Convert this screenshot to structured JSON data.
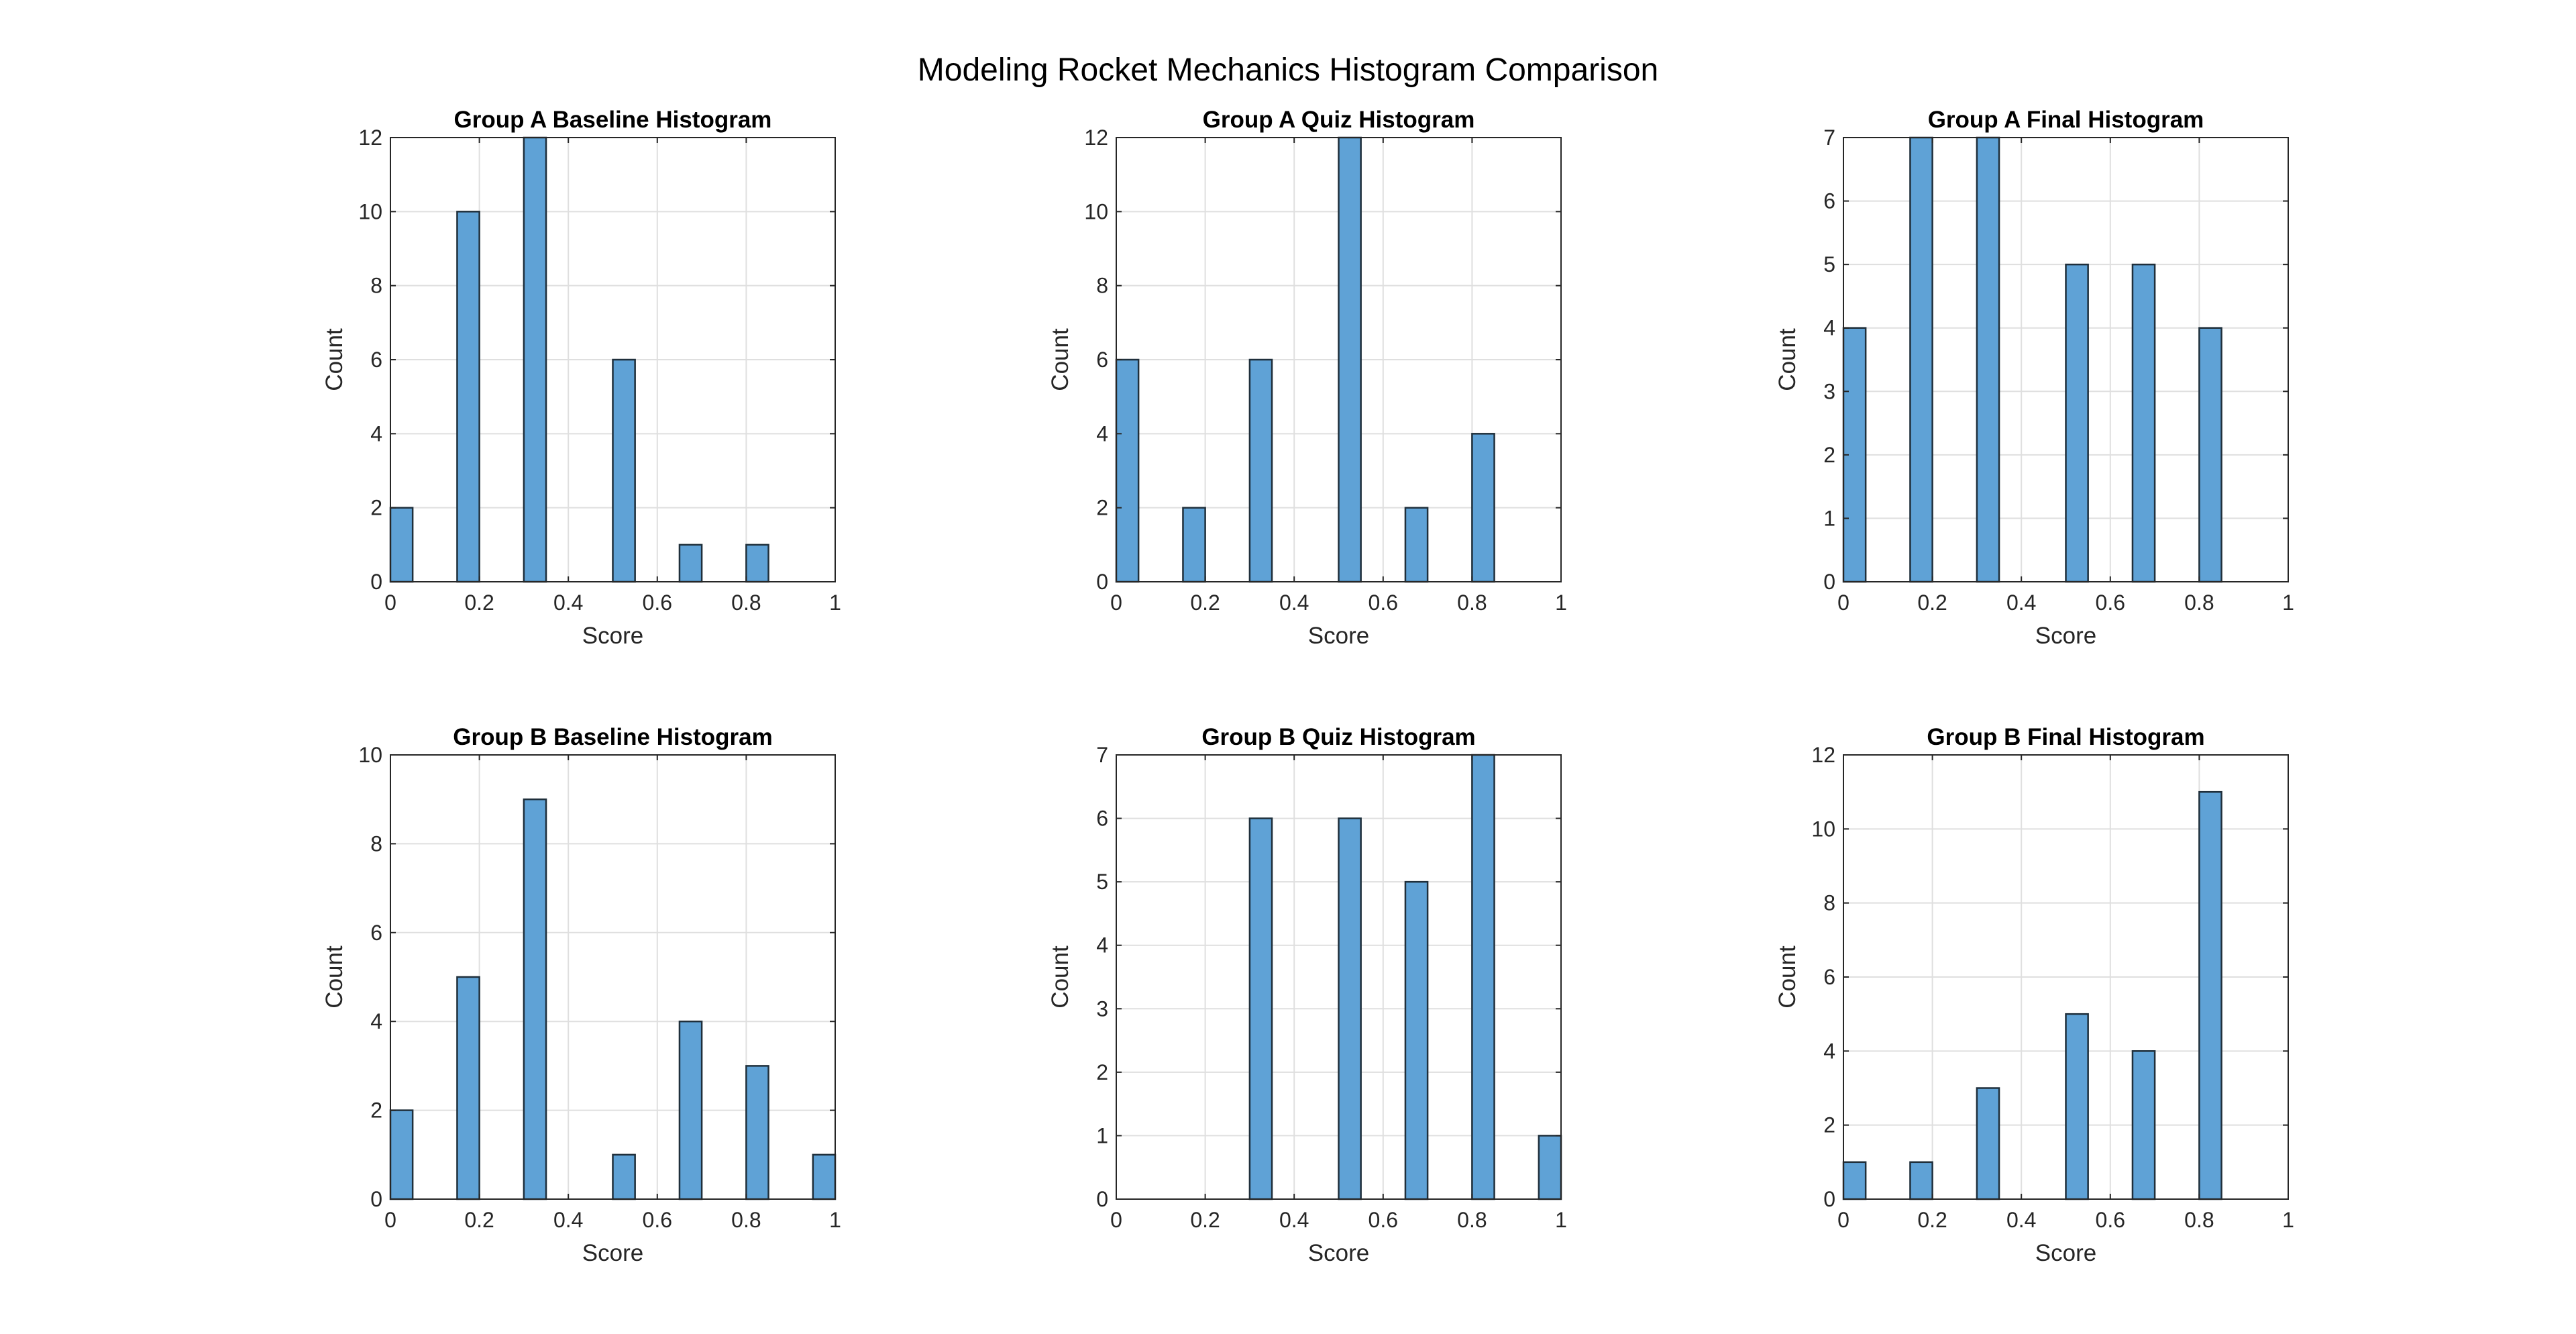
{
  "figure_title": "Modeling Rocket Mechanics Histogram Comparison",
  "chart_data": [
    {
      "type": "bar",
      "title": "Group A Baseline Histogram",
      "xlabel": "Score",
      "ylabel": "Count",
      "xlim": [
        0,
        1
      ],
      "ylim": [
        0,
        12
      ],
      "xticks": [
        0,
        0.2,
        0.4,
        0.6,
        0.8,
        1
      ],
      "yticks": [
        0,
        2,
        4,
        6,
        8,
        10,
        12
      ],
      "grid": true,
      "bin_width": 0.05,
      "bin_starts": [
        0,
        0.15,
        0.3,
        0.5,
        0.65,
        0.8
      ],
      "values": [
        2,
        10,
        12,
        6,
        1,
        1
      ]
    },
    {
      "type": "bar",
      "title": "Group A Quiz Histogram",
      "xlabel": "Score",
      "ylabel": "Count",
      "xlim": [
        0,
        1
      ],
      "ylim": [
        0,
        12
      ],
      "xticks": [
        0,
        0.2,
        0.4,
        0.6,
        0.8,
        1
      ],
      "yticks": [
        0,
        2,
        4,
        6,
        8,
        10,
        12
      ],
      "grid": true,
      "bin_width": 0.05,
      "bin_starts": [
        0,
        0.15,
        0.3,
        0.5,
        0.65,
        0.8
      ],
      "values": [
        6,
        2,
        6,
        12,
        2,
        4
      ]
    },
    {
      "type": "bar",
      "title": "Group A Final Histogram",
      "xlabel": "Score",
      "ylabel": "Count",
      "xlim": [
        0,
        1
      ],
      "ylim": [
        0,
        7
      ],
      "xticks": [
        0,
        0.2,
        0.4,
        0.6,
        0.8,
        1
      ],
      "yticks": [
        0,
        1,
        2,
        3,
        4,
        5,
        6,
        7
      ],
      "grid": true,
      "bin_width": 0.05,
      "bin_starts": [
        0,
        0.15,
        0.3,
        0.5,
        0.65,
        0.8
      ],
      "values": [
        4,
        7,
        7,
        5,
        5,
        4
      ]
    },
    {
      "type": "bar",
      "title": "Group B Baseline Histogram",
      "xlabel": "Score",
      "ylabel": "Count",
      "xlim": [
        0,
        1
      ],
      "ylim": [
        0,
        10
      ],
      "xticks": [
        0,
        0.2,
        0.4,
        0.6,
        0.8,
        1
      ],
      "yticks": [
        0,
        2,
        4,
        6,
        8,
        10
      ],
      "grid": true,
      "bin_width": 0.05,
      "bin_starts": [
        0,
        0.15,
        0.3,
        0.5,
        0.65,
        0.8,
        0.95
      ],
      "values": [
        2,
        5,
        9,
        1,
        4,
        3,
        1
      ]
    },
    {
      "type": "bar",
      "title": "Group B Quiz Histogram",
      "xlabel": "Score",
      "ylabel": "Count",
      "xlim": [
        0,
        1
      ],
      "ylim": [
        0,
        7
      ],
      "xticks": [
        0,
        0.2,
        0.4,
        0.6,
        0.8,
        1
      ],
      "yticks": [
        0,
        1,
        2,
        3,
        4,
        5,
        6,
        7
      ],
      "grid": true,
      "bin_width": 0.05,
      "bin_starts": [
        0.3,
        0.5,
        0.65,
        0.8,
        0.95
      ],
      "values": [
        6,
        6,
        5,
        7,
        1
      ]
    },
    {
      "type": "bar",
      "title": "Group B Final Histogram",
      "xlabel": "Score",
      "ylabel": "Count",
      "xlim": [
        0,
        1
      ],
      "ylim": [
        0,
        12
      ],
      "xticks": [
        0,
        0.2,
        0.4,
        0.6,
        0.8,
        1
      ],
      "yticks": [
        0,
        2,
        4,
        6,
        8,
        10,
        12
      ],
      "grid": true,
      "bin_width": 0.05,
      "bin_starts": [
        0,
        0.15,
        0.3,
        0.5,
        0.65,
        0.8
      ],
      "values": [
        1,
        1,
        3,
        5,
        4,
        11
      ]
    }
  ]
}
